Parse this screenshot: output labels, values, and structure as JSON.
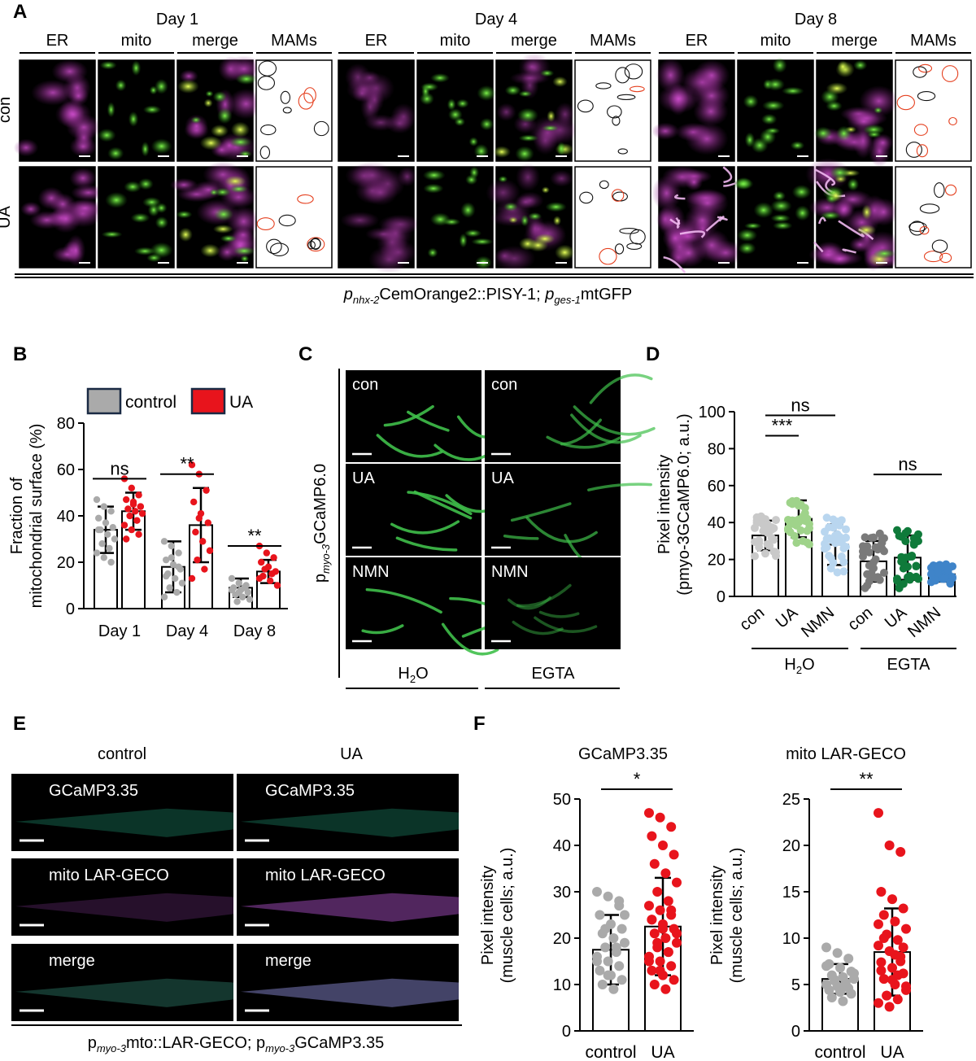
{
  "panels": {
    "A": {
      "letter": "A",
      "days": [
        "Day 1",
        "Day 4",
        "Day 8"
      ],
      "columns": [
        "ER",
        "mito",
        "merge",
        "MAMs"
      ],
      "rows": [
        "con",
        "UA"
      ],
      "caption_parts": {
        "p1": "p",
        "s1": "nhx-2",
        "t1": "CemOrange2::PISY-1; ",
        "p2": "p",
        "s2": "ges-1",
        "t2": "mtGFP"
      }
    },
    "B": {
      "letter": "B"
    },
    "C": {
      "letter": "C",
      "side_p": "p",
      "side_sub": "myo-3",
      "side_rest": "GCaMP6.0",
      "tiles": [
        [
          "con",
          "con"
        ],
        [
          "UA",
          "UA"
        ],
        [
          "NMN",
          "NMN"
        ]
      ],
      "bottom": [
        "H",
        "2",
        "O",
        "EGTA"
      ]
    },
    "D": {
      "letter": "D"
    },
    "E": {
      "letter": "E",
      "headers": [
        "control",
        "UA"
      ],
      "rows": [
        "GCaMP3.35",
        "mito LAR-GECO",
        "merge"
      ],
      "caption_parts": {
        "p1": "p",
        "s1": "myo-3",
        "t1": "mto::LAR-GECO; p",
        "s2": "myo-3",
        "t2": "GCaMP3.35"
      }
    },
    "F": {
      "letter": "F"
    }
  },
  "chart_data": [
    {
      "id": "B",
      "type": "bar",
      "categories": [
        "Day 1",
        "Day 4",
        "Day 8"
      ],
      "ylabel_lines": [
        "Fraction of",
        "mitochondrial surface (%)"
      ],
      "ylim": [
        0,
        80
      ],
      "yticks": [
        0,
        20,
        40,
        60,
        80
      ],
      "legend": [
        "control",
        "UA"
      ],
      "series": [
        {
          "name": "control",
          "color": "#aaaaaa",
          "values": [
            34,
            18,
            9
          ],
          "err": [
            10,
            11,
            4
          ],
          "points": [
            [
              47,
              44,
              42,
              39,
              37,
              35,
              34,
              32,
              30,
              28,
              26,
              24,
              22,
              20,
              34
            ],
            [
              29,
              27,
              24,
              21,
              19,
              17,
              15,
              13,
              11,
              9,
              7,
              5,
              22,
              18,
              14
            ],
            [
              13,
              11,
              10,
              9,
              8,
              7,
              6,
              5,
              4,
              3,
              9,
              8,
              7
            ]
          ]
        },
        {
          "name": "UA",
          "color": "#e8141c",
          "values": [
            42,
            36,
            16
          ],
          "err": [
            8,
            16,
            5
          ],
          "points": [
            [
              56,
              52,
              49,
              47,
              45,
              44,
              43,
              42,
              41,
              40,
              38,
              36,
              34,
              32,
              30,
              46,
              44
            ],
            [
              62,
              58,
              51,
              46,
              41,
              37,
              33,
              29,
              25,
              21,
              17,
              13,
              39
            ],
            [
              27,
              24,
              22,
              20,
              18,
              16,
              14,
              12,
              10,
              17,
              15,
              13
            ]
          ]
        }
      ],
      "significance": [
        "ns",
        "**",
        "**"
      ]
    },
    {
      "id": "D",
      "type": "bar",
      "categories": [
        "con",
        "UA",
        "NMN",
        "con",
        "UA",
        "NMN"
      ],
      "groups": [
        "H2O",
        "EGTA"
      ],
      "ylabel_lines": [
        "Pixel intensity",
        "(pmyo-3GCaMP6.0; a.u.)"
      ],
      "ylim": [
        0,
        100
      ],
      "yticks": [
        0,
        20,
        40,
        60,
        80,
        100
      ],
      "values": [
        33,
        42,
        28,
        19,
        21,
        12
      ],
      "err": [
        8,
        10,
        11,
        11,
        12,
        4
      ],
      "colors": [
        "#c9c9c9",
        "#9fd38a",
        "#b9d6ef",
        "#7a7a7a",
        "#0f7a3a",
        "#3f84c9"
      ],
      "significance": [
        {
          "label": "***",
          "from": 0,
          "to": 1,
          "level": 87
        },
        {
          "label": "ns",
          "from": 0,
          "to": 2,
          "level": 98
        },
        {
          "label": "ns",
          "from": 3,
          "to": 5,
          "level": 66
        }
      ]
    },
    {
      "id": "F1",
      "type": "bar",
      "title": "GCaMP3.35",
      "categories": [
        "control",
        "UA"
      ],
      "ylabel_lines": [
        "Pixel intensity",
        "(muscle cells; a.u.)"
      ],
      "ylim": [
        0,
        50
      ],
      "yticks": [
        0,
        10,
        20,
        30,
        40,
        50
      ],
      "values": [
        17.5,
        22.5
      ],
      "err": [
        7.5,
        10.5
      ],
      "colors": [
        "#aaaaaa",
        "#e8141c"
      ],
      "points": [
        [
          30,
          29,
          27,
          25,
          23,
          22,
          21,
          20,
          19,
          18,
          17,
          16,
          15,
          14,
          13,
          12,
          11,
          10,
          9,
          25,
          22,
          18,
          15,
          12,
          28
        ],
        [
          47,
          46,
          44,
          42,
          40,
          38,
          36,
          34,
          32,
          30,
          28,
          27,
          26,
          25,
          24,
          23,
          22,
          21,
          20,
          19,
          18,
          17,
          16,
          15,
          14,
          13,
          12,
          11,
          10,
          9,
          21,
          19,
          17,
          15,
          13,
          26,
          24,
          22
        ]
      ],
      "significance": "*"
    },
    {
      "id": "F2",
      "type": "bar",
      "title": "mito LAR-GECO",
      "categories": [
        "control",
        "UA"
      ],
      "ylabel_lines": [
        "Pixel intensity",
        "(muscle cells; a.u.)"
      ],
      "ylim": [
        0,
        25
      ],
      "yticks": [
        0,
        5,
        10,
        15,
        20,
        25
      ],
      "values": [
        5.6,
        8.5
      ],
      "err": [
        1.6,
        4.7
      ],
      "colors": [
        "#aaaaaa",
        "#e8141c"
      ],
      "points": [
        [
          9,
          8.4,
          7.8,
          7.2,
          6.8,
          6.4,
          6,
          5.8,
          5.6,
          5.4,
          5.2,
          5,
          4.8,
          4.6,
          4.4,
          4.2,
          4,
          3.6,
          3.2,
          6.2,
          5.5,
          4.9,
          7
        ],
        [
          23.5,
          20,
          19.3,
          15,
          14.2,
          13.2,
          12.5,
          11.8,
          11,
          10.4,
          9.8,
          9.2,
          8.6,
          8,
          7.4,
          6.8,
          6.2,
          5.6,
          5,
          4.4,
          3.8,
          3.4,
          3,
          2.6,
          7.5,
          6.5,
          5.5,
          9,
          10,
          8.2,
          4.8,
          3.8,
          6,
          11.5
        ]
      ],
      "significance": "**"
    }
  ]
}
